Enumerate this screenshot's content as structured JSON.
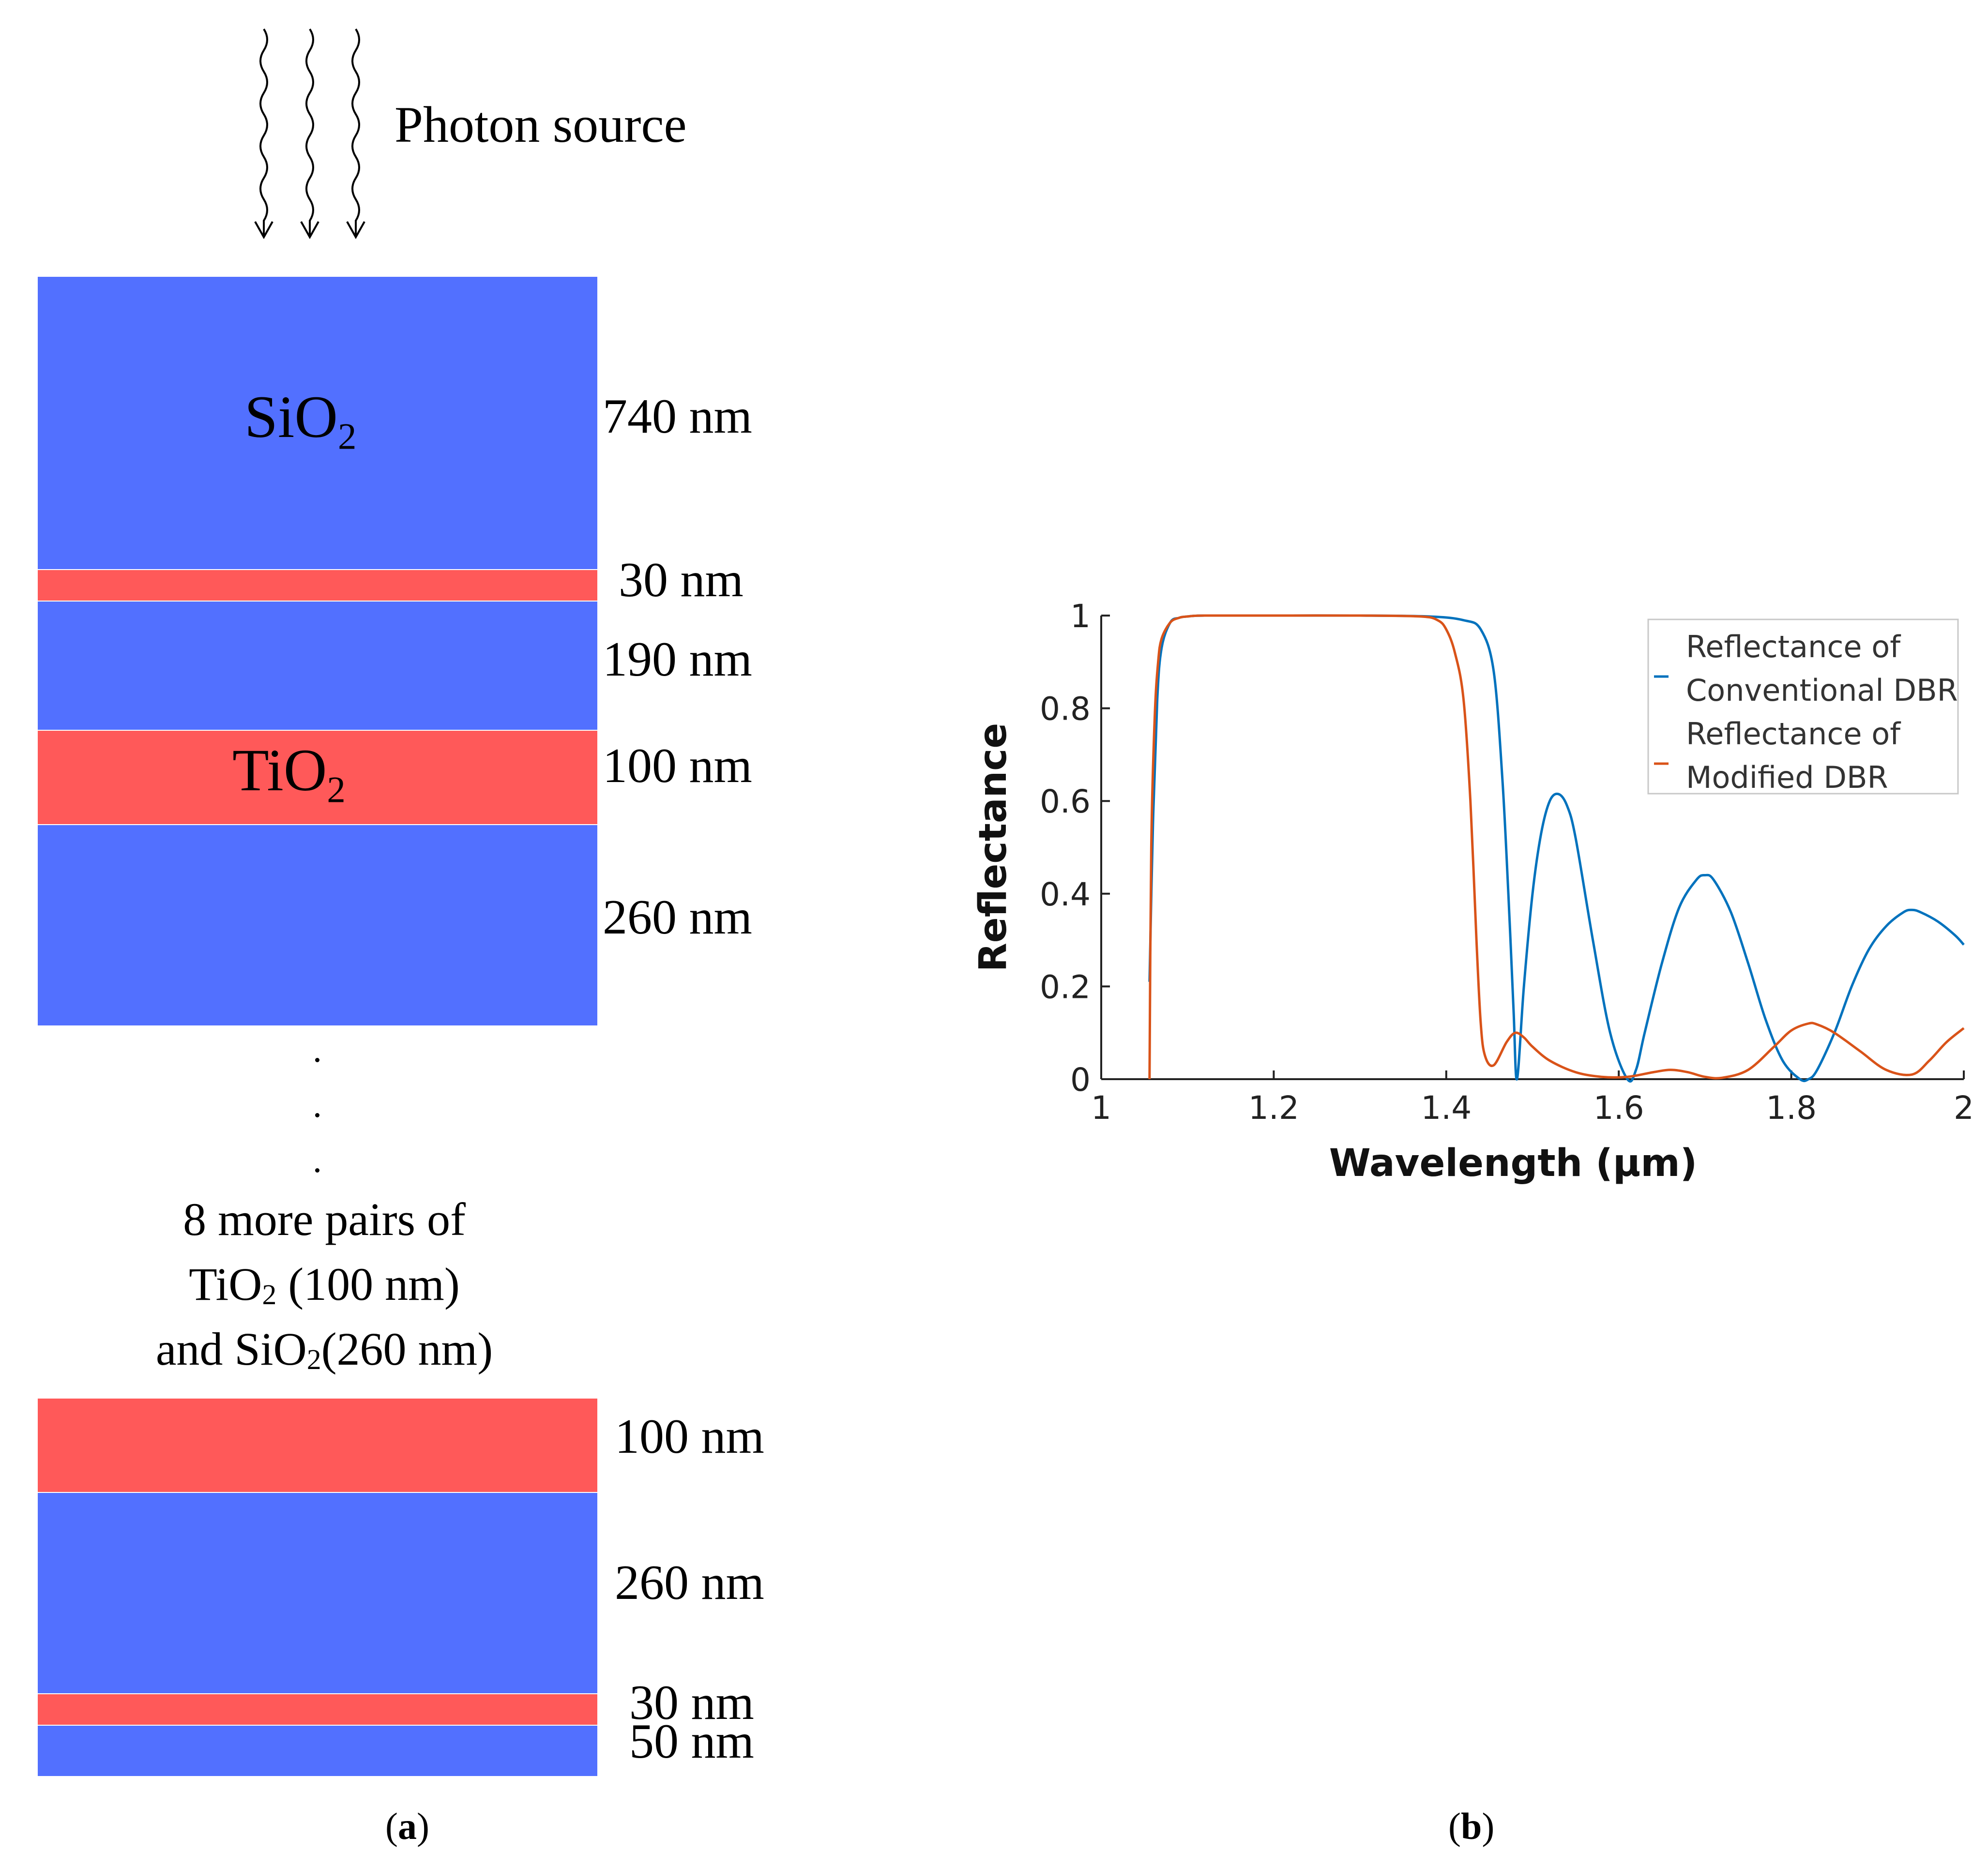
{
  "panel_a": {
    "source_label": "Photon source",
    "top_stack": [
      {
        "material": "SiO2",
        "thickness": "740 nm",
        "label": "SiO",
        "sub": "2"
      },
      {
        "material": "TiO2",
        "thickness": "30 nm"
      },
      {
        "material": "SiO2",
        "thickness": "190 nm"
      },
      {
        "material": "TiO2",
        "thickness": "100 nm",
        "label": "TiO",
        "sub": "2"
      },
      {
        "material": "SiO2",
        "thickness": "260 nm"
      }
    ],
    "note": {
      "line1": "8 more pairs of",
      "line2_a": "TiO",
      "line2_sub": "2",
      "line2_b": " (100 nm)",
      "line3_a": "and SiO",
      "line3_sub": "2",
      "line3_b": "(260 nm)"
    },
    "bottom_stack": [
      {
        "material": "TiO2",
        "thickness": "100 nm"
      },
      {
        "material": "SiO2",
        "thickness": "260 nm"
      },
      {
        "material": "TiO2",
        "thickness": "30 nm"
      },
      {
        "material": "SiO2",
        "thickness": "50 nm"
      }
    ],
    "caption_letter": "a"
  },
  "panel_b": {
    "caption_letter": "b"
  },
  "colors": {
    "sio2": "#5270ff",
    "tio2": "#ff5959",
    "conventional": "#0072bd",
    "modified": "#d95319"
  },
  "chart_data": {
    "type": "line",
    "xlabel": "Wavelength (μm)",
    "ylabel": "Reflectance",
    "xlim": [
      1,
      2
    ],
    "ylim": [
      0,
      1
    ],
    "xticks": [
      1,
      1.2,
      1.4,
      1.6,
      1.8,
      2
    ],
    "yticks": [
      0,
      0.2,
      0.4,
      0.6,
      0.8,
      1
    ],
    "xtick_labels": [
      "1",
      "1.2",
      "1.4",
      "1.6",
      "1.8",
      "2"
    ],
    "ytick_labels": [
      "0",
      "0.2",
      "0.4",
      "0.6",
      "0.8",
      "1"
    ],
    "legend_position": "top-right",
    "series": [
      {
        "name": "Reflectance of Conventional DBR",
        "legend_lines": [
          "Reflectance of",
          "Conventional DBR"
        ],
        "color": "#0072bd",
        "x": [
          1.056,
          1.06,
          1.065,
          1.07,
          1.08,
          1.09,
          1.1,
          1.12,
          1.2,
          1.3,
          1.38,
          1.42,
          1.44,
          1.455,
          1.465,
          1.472,
          1.478,
          1.482,
          1.49,
          1.5,
          1.51,
          1.52,
          1.53,
          1.54,
          1.55,
          1.57,
          1.59,
          1.61,
          1.62,
          1.63,
          1.65,
          1.67,
          1.69,
          1.7,
          1.71,
          1.73,
          1.75,
          1.77,
          1.79,
          1.81,
          1.82,
          1.83,
          1.85,
          1.87,
          1.89,
          1.91,
          1.93,
          1.94,
          1.95,
          1.97,
          1.99,
          2.0
        ],
        "y": [
          0.21,
          0.55,
          0.82,
          0.93,
          0.985,
          0.995,
          0.998,
          1.0,
          1.0,
          1.0,
          0.998,
          0.99,
          0.97,
          0.88,
          0.65,
          0.4,
          0.15,
          0.0,
          0.2,
          0.4,
          0.53,
          0.6,
          0.615,
          0.59,
          0.52,
          0.3,
          0.1,
          0.0,
          0.02,
          0.1,
          0.25,
          0.37,
          0.43,
          0.44,
          0.43,
          0.36,
          0.25,
          0.13,
          0.04,
          0.0,
          0.0,
          0.02,
          0.1,
          0.2,
          0.28,
          0.33,
          0.36,
          0.365,
          0.36,
          0.34,
          0.31,
          0.29
        ]
      },
      {
        "name": "Reflectance of Modified DBR",
        "legend_lines": [
          "Reflectance of",
          "Modified DBR"
        ],
        "color": "#d95319",
        "x": [
          1.056,
          1.058,
          1.062,
          1.066,
          1.07,
          1.08,
          1.09,
          1.1,
          1.12,
          1.2,
          1.3,
          1.37,
          1.39,
          1.4,
          1.41,
          1.42,
          1.428,
          1.435,
          1.44,
          1.445,
          1.455,
          1.47,
          1.48,
          1.49,
          1.5,
          1.52,
          1.55,
          1.58,
          1.61,
          1.64,
          1.66,
          1.68,
          1.7,
          1.72,
          1.75,
          1.78,
          1.8,
          1.82,
          1.83,
          1.85,
          1.88,
          1.91,
          1.94,
          1.96,
          1.98,
          2.0
        ],
        "y": [
          0.0,
          0.5,
          0.78,
          0.9,
          0.95,
          0.985,
          0.995,
          0.998,
          1.0,
          1.0,
          1.0,
          0.998,
          0.99,
          0.97,
          0.92,
          0.82,
          0.6,
          0.3,
          0.12,
          0.05,
          0.03,
          0.08,
          0.1,
          0.09,
          0.07,
          0.04,
          0.015,
          0.005,
          0.005,
          0.015,
          0.02,
          0.015,
          0.005,
          0.003,
          0.02,
          0.07,
          0.105,
          0.12,
          0.118,
          0.1,
          0.06,
          0.02,
          0.01,
          0.04,
          0.08,
          0.11
        ]
      }
    ]
  }
}
